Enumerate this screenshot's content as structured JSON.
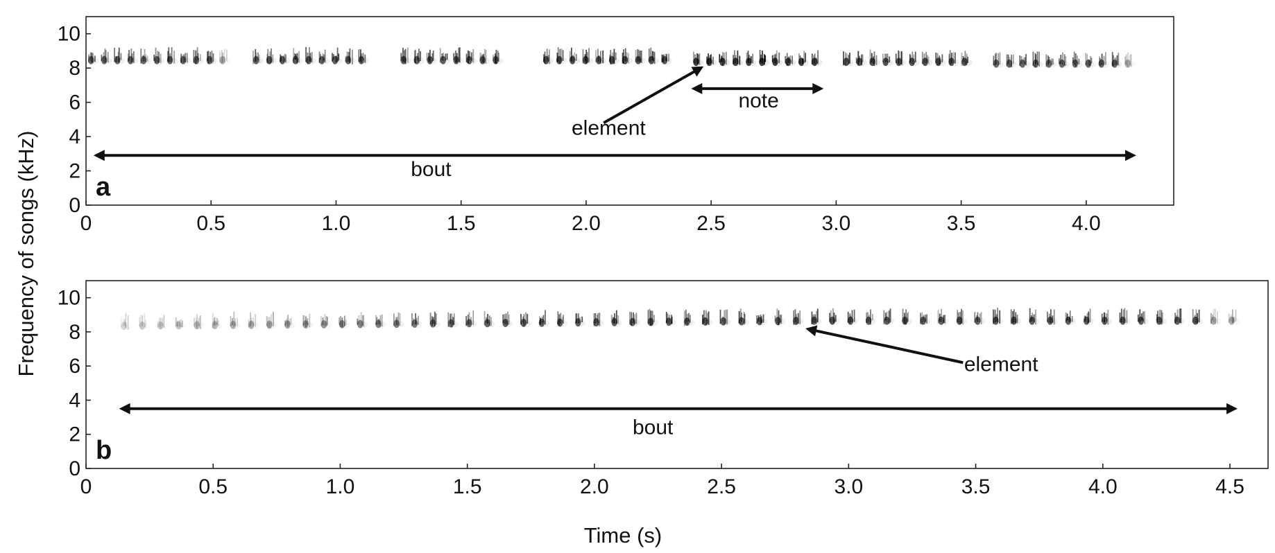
{
  "figure": {
    "ylabel": "Frequency of songs (kHz)",
    "xlabel": "Time (s)"
  },
  "chart_data": [
    {
      "type": "spectrogram",
      "panel": "a",
      "xlim": [
        0,
        4.35
      ],
      "ylim": [
        0,
        11
      ],
      "xticks": [
        0,
        0.5,
        1.0,
        1.5,
        2.0,
        2.5,
        3.0,
        3.5,
        4.0
      ],
      "xtick_labels": [
        "0",
        "0.5",
        "1.0",
        "1.5",
        "2.0",
        "2.5",
        "3.0",
        "3.5",
        "4.0"
      ],
      "yticks": [
        0,
        2,
        4,
        6,
        8,
        10
      ],
      "ytick_labels": [
        "0",
        "2",
        "4",
        "6",
        "8",
        "10"
      ],
      "element_rate_per_s": 19,
      "notes": [
        {
          "start": 0.02,
          "end": 0.55,
          "freq_khz": 8.5,
          "intensity": 0.75
        },
        {
          "start": 0.68,
          "end": 1.14,
          "freq_khz": 8.5,
          "intensity": 0.8
        },
        {
          "start": 1.27,
          "end": 1.68,
          "freq_khz": 8.5,
          "intensity": 0.8
        },
        {
          "start": 1.84,
          "end": 2.34,
          "freq_khz": 8.5,
          "intensity": 0.85
        },
        {
          "start": 2.44,
          "end": 2.96,
          "freq_khz": 8.4,
          "intensity": 0.95
        },
        {
          "start": 3.04,
          "end": 3.54,
          "freq_khz": 8.4,
          "intensity": 0.85
        },
        {
          "start": 3.64,
          "end": 4.18,
          "freq_khz": 8.3,
          "intensity": 0.75
        }
      ],
      "annotations": [
        {
          "label": "element",
          "kind": "arrow",
          "from": [
            2.07,
            4.8
          ],
          "to": [
            2.47,
            8.1
          ],
          "text_pos": [
            2.09,
            4.1
          ]
        },
        {
          "label": "note",
          "kind": "double-arrow",
          "from": [
            2.42,
            6.8
          ],
          "to": [
            2.95,
            6.8
          ],
          "text_pos": [
            2.69,
            5.7
          ]
        },
        {
          "label": "bout",
          "kind": "double-arrow",
          "from": [
            0.03,
            2.9
          ],
          "to": [
            4.2,
            2.9
          ],
          "text_pos": [
            1.38,
            1.7
          ]
        }
      ]
    },
    {
      "type": "spectrogram",
      "panel": "b",
      "xlim": [
        0,
        4.65
      ],
      "ylim": [
        0,
        11
      ],
      "xticks": [
        0,
        0.5,
        1.0,
        1.5,
        2.0,
        2.5,
        3.0,
        3.5,
        4.0,
        4.5
      ],
      "xtick_labels": [
        "0",
        "0.5",
        "1.0",
        "1.5",
        "2.0",
        "2.5",
        "3.0",
        "3.5",
        "4.0",
        "4.5"
      ],
      "yticks": [
        0,
        2,
        4,
        6,
        8,
        10
      ],
      "ytick_labels": [
        "0",
        "2",
        "4",
        "6",
        "8",
        "10"
      ],
      "element_rate_per_s": 14,
      "notes": [
        {
          "start": 0.15,
          "end": 4.57,
          "freq_khz": 8.4,
          "freq_end_khz": 8.7,
          "intensity": 0.8,
          "fade_in": true
        }
      ],
      "annotations": [
        {
          "label": "element",
          "kind": "arrow",
          "from": [
            3.45,
            6.2
          ],
          "to": [
            2.83,
            8.2
          ],
          "text_pos": [
            3.6,
            5.7
          ]
        },
        {
          "label": "bout",
          "kind": "double-arrow",
          "from": [
            0.13,
            3.5
          ],
          "to": [
            4.53,
            3.5
          ],
          "text_pos": [
            2.23,
            2.0
          ]
        }
      ]
    }
  ]
}
